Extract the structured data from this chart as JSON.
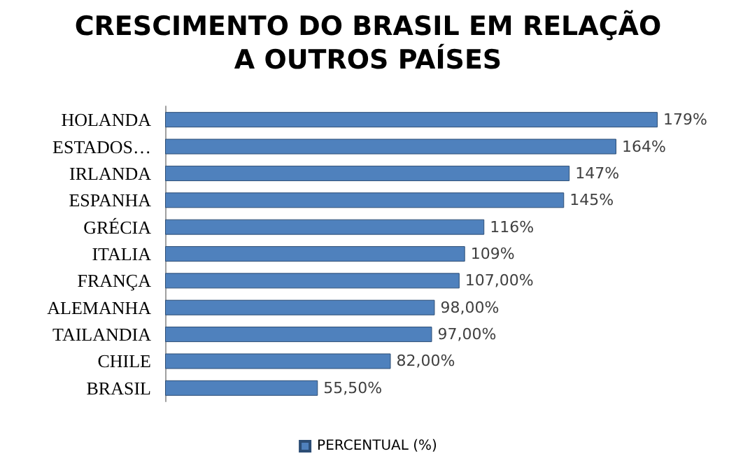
{
  "chart_data": {
    "type": "bar",
    "orientation": "horizontal",
    "title": "CRESCIMENTO DO BRASIL EM RELAÇÃO\nA OUTROS PAÍSES",
    "categories": [
      "HOLANDA",
      "ESTADOS…",
      "IRLANDA",
      "ESPANHA",
      "GRÉCIA",
      "ITALIA",
      "FRANÇA",
      "ALEMANHA",
      "TAILANDIA",
      "CHILE",
      "BRASIL"
    ],
    "series": [
      {
        "name": "PERCENTUAL (%)",
        "color": "#4f81bd",
        "values": [
          179,
          164,
          147,
          145,
          116,
          109,
          107,
          98,
          97,
          82,
          55.5
        ],
        "value_labels": [
          "179%",
          "164%",
          "147%",
          "145%",
          "116%",
          "109%",
          "107,00%",
          "98,00%",
          "97,00%",
          "82,00%",
          "55,50%"
        ]
      }
    ],
    "legend": "bottom"
  }
}
